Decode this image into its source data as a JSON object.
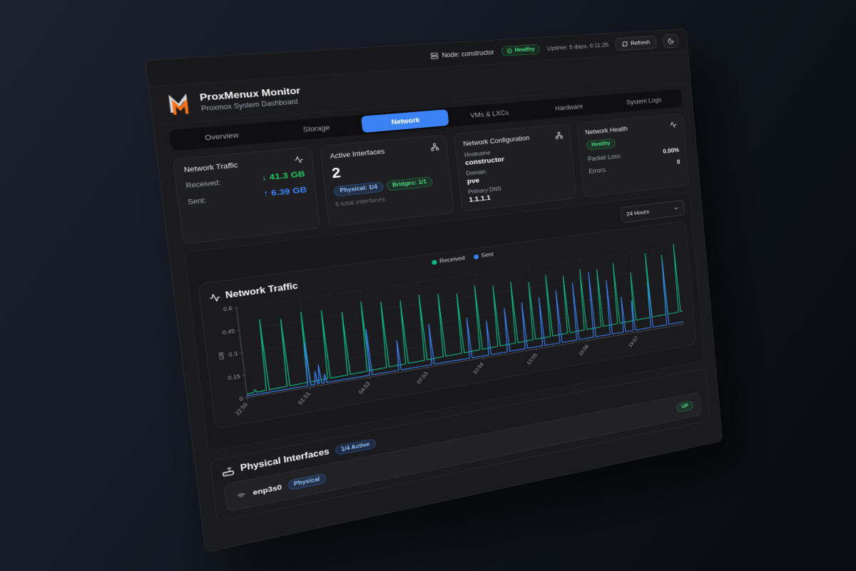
{
  "topbar": {
    "node_label": "Node: constructor",
    "health_badge": "Healthy",
    "uptime": "Uptime: 5 days, 6:11:25",
    "refresh_label": "Refresh"
  },
  "header": {
    "title": "ProxMenux Monitor",
    "subtitle": "Proxmox System Dashboard"
  },
  "tabs": [
    {
      "label": "Overview",
      "active": false
    },
    {
      "label": "Storage",
      "active": false
    },
    {
      "label": "Network",
      "active": true
    },
    {
      "label": "VMs & LXCs",
      "active": false
    },
    {
      "label": "Hardware",
      "active": false
    },
    {
      "label": "System Logs",
      "active": false
    }
  ],
  "cards": {
    "traffic": {
      "title": "Network Traffic",
      "received_label": "Received:",
      "received_value": "↓ 41.3 GB",
      "sent_label": "Sent:",
      "sent_value": "↑ 6.39 GB"
    },
    "interfaces": {
      "title": "Active Interfaces",
      "count": "2",
      "badge_physical": "Physical: 1/4",
      "badge_bridges": "Bridges: 1/1",
      "total": "5 total interfaces"
    },
    "config": {
      "title": "Network Configuration",
      "hostname_label": "Hostname",
      "hostname": "constructor",
      "domain_label": "Domain",
      "domain": "pve",
      "dns_label": "Primary DNS",
      "dns": "1.1.1.1"
    },
    "health": {
      "title": "Network Health",
      "status": "Healthy",
      "packet_loss_label": "Packet Loss:",
      "packet_loss": "0.00%",
      "errors_label": "Errors:",
      "errors": "0"
    }
  },
  "controls": {
    "time_range": "24 Hours"
  },
  "chart_data": {
    "type": "line",
    "title": "Network Traffic",
    "ylabel": "GB",
    "ylim": [
      0,
      0.6
    ],
    "yticks": [
      0,
      0.15,
      0.3,
      0.45,
      0.6
    ],
    "xticks": [
      "22:50",
      "01:51",
      "04:52",
      "07:53",
      "10:54",
      "13:55",
      "16:56",
      "19:57"
    ],
    "tick_interval_hours": 3.0167,
    "x_range_hours": 24,
    "grid": "dotted",
    "legend_position": "top-center",
    "series": [
      {
        "name": "Received",
        "color": "#10b981",
        "baseline_start": 0.025,
        "baseline_end": 0.1,
        "spikes": [
          [
            0.4,
            0.045
          ],
          [
            1,
            0.5
          ],
          [
            2,
            0.48
          ],
          [
            3,
            0.51
          ],
          [
            4,
            0.5
          ],
          [
            5,
            0.47
          ],
          [
            6,
            0.52
          ],
          [
            7,
            0.5
          ],
          [
            8,
            0.49
          ],
          [
            9,
            0.51
          ],
          [
            10,
            0.5
          ],
          [
            11,
            0.48
          ],
          [
            12,
            0.52
          ],
          [
            13,
            0.5
          ],
          [
            14,
            0.51
          ],
          [
            15,
            0.49
          ],
          [
            16,
            0.52
          ],
          [
            17,
            0.5
          ],
          [
            18,
            0.53
          ],
          [
            19,
            0.51
          ],
          [
            20,
            0.54
          ],
          [
            21,
            0.45
          ],
          [
            22,
            0.58
          ],
          [
            23,
            0.55
          ],
          [
            23.8,
            0.62
          ]
        ]
      },
      {
        "name": "Sent",
        "color": "#3b82f6",
        "baseline_start": 0.012,
        "baseline_end": 0.018,
        "spikes": [
          [
            3.0,
            0.3
          ],
          [
            3.35,
            0.1
          ],
          [
            3.55,
            0.14
          ],
          [
            3.8,
            0.07
          ],
          [
            6.1,
            0.33
          ],
          [
            7.6,
            0.22
          ],
          [
            9.35,
            0.3
          ],
          [
            11.4,
            0.3
          ],
          [
            12.45,
            0.26
          ],
          [
            13.5,
            0.33
          ],
          [
            14.5,
            0.35
          ],
          [
            15.5,
            0.37
          ],
          [
            16.5,
            0.4
          ],
          [
            17.5,
            0.44
          ],
          [
            18.5,
            0.5
          ],
          [
            19.5,
            0.42
          ],
          [
            20.3,
            0.28
          ],
          [
            20.9,
            0.24
          ],
          [
            22.0,
            0.36
          ],
          [
            23.0,
            0.5
          ]
        ]
      }
    ]
  },
  "physical": {
    "title": "Physical Interfaces",
    "active_badge": "1/4 Active",
    "interfaces": [
      {
        "name": "enp3s0",
        "type_badge": "Physical",
        "status": "UP"
      }
    ]
  },
  "colors": {
    "accent_blue": "#3b82f6",
    "green": "#22c55e",
    "received_line": "#10b981",
    "sent_line": "#3b82f6",
    "logo_orange": "#f97316",
    "logo_gray": "#d1d5db"
  }
}
